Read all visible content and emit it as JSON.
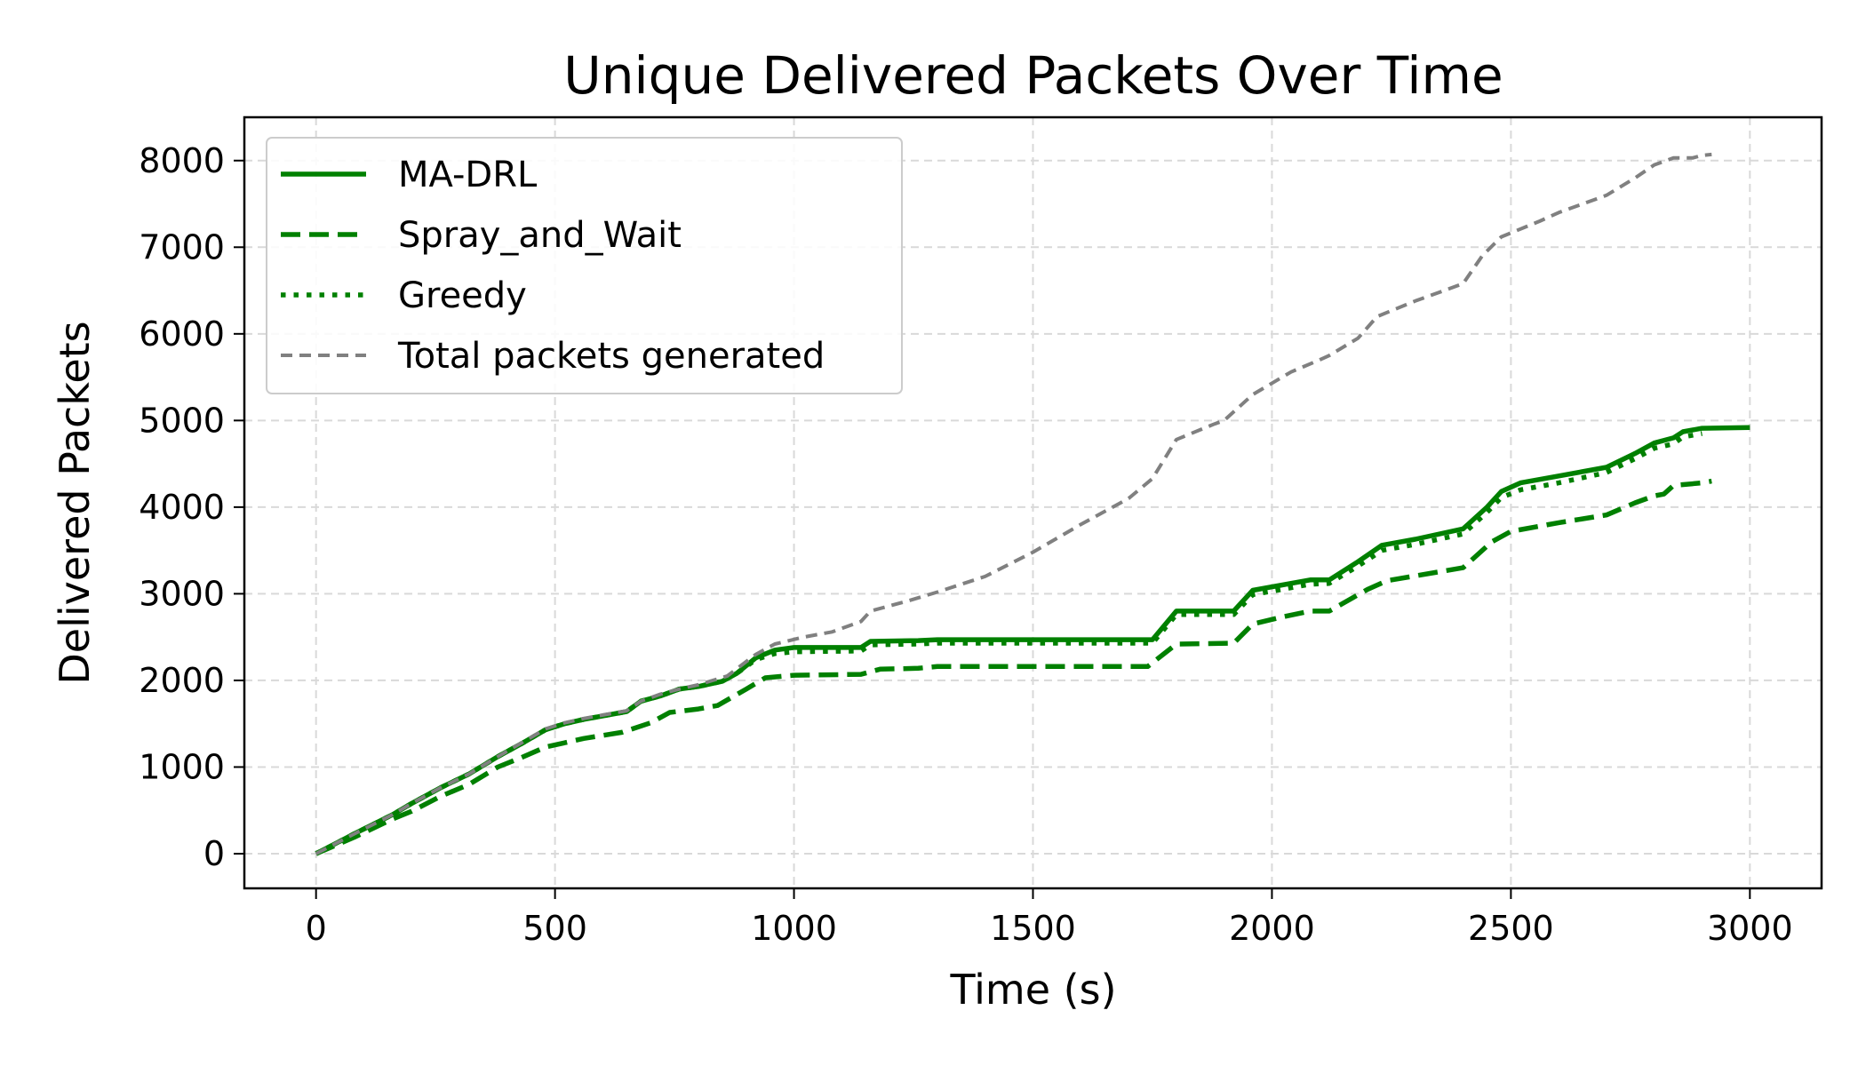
{
  "chart_data": {
    "type": "line",
    "title": "Unique Delivered Packets Over Time",
    "xlabel": "Time (s)",
    "ylabel": "Delivered Packets",
    "xlim": [
      -150,
      3150
    ],
    "ylim": [
      -400,
      8500
    ],
    "xticks": [
      0,
      500,
      1000,
      1500,
      2000,
      2500,
      3000
    ],
    "yticks": [
      0,
      1000,
      2000,
      3000,
      4000,
      5000,
      6000,
      7000,
      8000
    ],
    "grid": true,
    "legend_position": "top-left",
    "series": [
      {
        "name": "MA-DRL",
        "color": "#008000",
        "style": "solid",
        "points": [
          [
            0,
            0
          ],
          [
            80,
            230
          ],
          [
            160,
            450
          ],
          [
            200,
            580
          ],
          [
            260,
            760
          ],
          [
            320,
            920
          ],
          [
            380,
            1120
          ],
          [
            430,
            1270
          ],
          [
            480,
            1430
          ],
          [
            520,
            1500
          ],
          [
            560,
            1550
          ],
          [
            600,
            1590
          ],
          [
            650,
            1640
          ],
          [
            680,
            1760
          ],
          [
            720,
            1820
          ],
          [
            760,
            1900
          ],
          [
            800,
            1930
          ],
          [
            850,
            1990
          ],
          [
            880,
            2080
          ],
          [
            920,
            2260
          ],
          [
            960,
            2350
          ],
          [
            1000,
            2380
          ],
          [
            1140,
            2380
          ],
          [
            1160,
            2450
          ],
          [
            1260,
            2460
          ],
          [
            1300,
            2470
          ],
          [
            1400,
            2470
          ],
          [
            1600,
            2470
          ],
          [
            1750,
            2470
          ],
          [
            1800,
            2800
          ],
          [
            1920,
            2800
          ],
          [
            1960,
            3040
          ],
          [
            2080,
            3160
          ],
          [
            2120,
            3160
          ],
          [
            2180,
            3370
          ],
          [
            2230,
            3560
          ],
          [
            2300,
            3630
          ],
          [
            2400,
            3750
          ],
          [
            2450,
            4000
          ],
          [
            2480,
            4180
          ],
          [
            2520,
            4280
          ],
          [
            2600,
            4360
          ],
          [
            2700,
            4460
          ],
          [
            2760,
            4620
          ],
          [
            2800,
            4740
          ],
          [
            2840,
            4800
          ],
          [
            2860,
            4870
          ],
          [
            2900,
            4910
          ],
          [
            3000,
            4920
          ]
        ]
      },
      {
        "name": "Spray_and_Wait",
        "color": "#008000",
        "style": "dashed",
        "points": [
          [
            0,
            0
          ],
          [
            80,
            190
          ],
          [
            160,
            400
          ],
          [
            200,
            490
          ],
          [
            260,
            660
          ],
          [
            320,
            800
          ],
          [
            380,
            1000
          ],
          [
            430,
            1110
          ],
          [
            480,
            1230
          ],
          [
            560,
            1330
          ],
          [
            640,
            1400
          ],
          [
            700,
            1510
          ],
          [
            740,
            1630
          ],
          [
            800,
            1670
          ],
          [
            840,
            1710
          ],
          [
            900,
            1900
          ],
          [
            940,
            2030
          ],
          [
            1000,
            2060
          ],
          [
            1140,
            2070
          ],
          [
            1180,
            2130
          ],
          [
            1260,
            2140
          ],
          [
            1300,
            2160
          ],
          [
            1400,
            2160
          ],
          [
            1600,
            2160
          ],
          [
            1740,
            2160
          ],
          [
            1800,
            2420
          ],
          [
            1920,
            2430
          ],
          [
            1960,
            2650
          ],
          [
            2020,
            2730
          ],
          [
            2080,
            2800
          ],
          [
            2120,
            2800
          ],
          [
            2200,
            3050
          ],
          [
            2240,
            3150
          ],
          [
            2400,
            3300
          ],
          [
            2460,
            3600
          ],
          [
            2500,
            3720
          ],
          [
            2600,
            3820
          ],
          [
            2700,
            3910
          ],
          [
            2760,
            4050
          ],
          [
            2800,
            4130
          ],
          [
            2820,
            4150
          ],
          [
            2840,
            4250
          ],
          [
            2900,
            4280
          ],
          [
            2920,
            4300
          ]
        ]
      },
      {
        "name": "Greedy",
        "color": "#008000",
        "style": "dotted",
        "points": [
          [
            0,
            0
          ],
          [
            80,
            230
          ],
          [
            160,
            450
          ],
          [
            200,
            580
          ],
          [
            260,
            760
          ],
          [
            320,
            920
          ],
          [
            380,
            1120
          ],
          [
            430,
            1270
          ],
          [
            480,
            1430
          ],
          [
            520,
            1500
          ],
          [
            560,
            1550
          ],
          [
            600,
            1590
          ],
          [
            650,
            1640
          ],
          [
            680,
            1760
          ],
          [
            720,
            1820
          ],
          [
            760,
            1900
          ],
          [
            800,
            1930
          ],
          [
            850,
            1990
          ],
          [
            880,
            2080
          ],
          [
            920,
            2240
          ],
          [
            960,
            2310
          ],
          [
            1000,
            2330
          ],
          [
            1140,
            2340
          ],
          [
            1160,
            2410
          ],
          [
            1260,
            2420
          ],
          [
            1300,
            2430
          ],
          [
            1400,
            2430
          ],
          [
            1600,
            2430
          ],
          [
            1750,
            2430
          ],
          [
            1800,
            2760
          ],
          [
            1920,
            2760
          ],
          [
            1960,
            2990
          ],
          [
            2080,
            3110
          ],
          [
            2120,
            3120
          ],
          [
            2180,
            3320
          ],
          [
            2230,
            3500
          ],
          [
            2300,
            3570
          ],
          [
            2400,
            3690
          ],
          [
            2450,
            3940
          ],
          [
            2480,
            4110
          ],
          [
            2520,
            4200
          ],
          [
            2600,
            4280
          ],
          [
            2700,
            4400
          ],
          [
            2760,
            4560
          ],
          [
            2800,
            4680
          ],
          [
            2840,
            4730
          ],
          [
            2860,
            4810
          ],
          [
            2900,
            4850
          ]
        ]
      },
      {
        "name": "Total packets generated",
        "color": "#808080",
        "style": "dashed",
        "points": [
          [
            0,
            0
          ],
          [
            80,
            230
          ],
          [
            160,
            450
          ],
          [
            200,
            580
          ],
          [
            260,
            760
          ],
          [
            320,
            920
          ],
          [
            380,
            1120
          ],
          [
            430,
            1280
          ],
          [
            480,
            1440
          ],
          [
            520,
            1510
          ],
          [
            560,
            1560
          ],
          [
            600,
            1600
          ],
          [
            650,
            1650
          ],
          [
            680,
            1760
          ],
          [
            720,
            1840
          ],
          [
            760,
            1900
          ],
          [
            800,
            1950
          ],
          [
            860,
            2050
          ],
          [
            920,
            2300
          ],
          [
            960,
            2420
          ],
          [
            1020,
            2500
          ],
          [
            1080,
            2560
          ],
          [
            1140,
            2680
          ],
          [
            1160,
            2800
          ],
          [
            1240,
            2920
          ],
          [
            1300,
            3020
          ],
          [
            1400,
            3200
          ],
          [
            1500,
            3480
          ],
          [
            1600,
            3800
          ],
          [
            1700,
            4100
          ],
          [
            1750,
            4330
          ],
          [
            1800,
            4780
          ],
          [
            1880,
            4960
          ],
          [
            1900,
            5000
          ],
          [
            1960,
            5300
          ],
          [
            2040,
            5560
          ],
          [
            2100,
            5700
          ],
          [
            2120,
            5750
          ],
          [
            2180,
            5950
          ],
          [
            2220,
            6200
          ],
          [
            2300,
            6380
          ],
          [
            2400,
            6580
          ],
          [
            2440,
            6900
          ],
          [
            2480,
            7120
          ],
          [
            2560,
            7300
          ],
          [
            2600,
            7400
          ],
          [
            2700,
            7600
          ],
          [
            2760,
            7800
          ],
          [
            2800,
            7950
          ],
          [
            2840,
            8030
          ],
          [
            2880,
            8030
          ],
          [
            2900,
            8060
          ],
          [
            2920,
            8070
          ]
        ]
      }
    ]
  }
}
